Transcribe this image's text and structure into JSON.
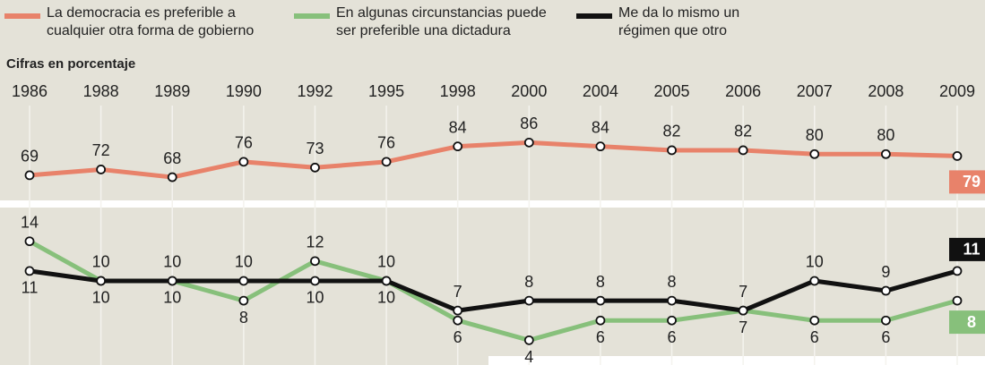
{
  "chart_data": {
    "type": "line",
    "subtitle": "Cifras en porcentaje",
    "categories": [
      "1986",
      "1988",
      "1989",
      "1990",
      "1992",
      "1995",
      "1998",
      "2000",
      "2004",
      "2005",
      "2006",
      "2007",
      "2008",
      "2009"
    ],
    "series": [
      {
        "name": "La democracia es preferible a cualquier otra forma de gobierno",
        "color": "#e8826a",
        "values": [
          69,
          72,
          68,
          76,
          73,
          76,
          84,
          86,
          84,
          82,
          82,
          80,
          80,
          79
        ]
      },
      {
        "name": "En algunas circunstancias puede ser preferible una dictadura",
        "color": "#87c07b",
        "axis": "y2",
        "values": [
          14,
          10,
          10,
          8,
          12,
          10,
          6,
          4,
          6,
          6,
          7,
          6,
          6,
          8
        ]
      },
      {
        "name": "Me da lo mismo un régimen que otro",
        "color": "#111111",
        "axis": "y2",
        "values": [
          11,
          10,
          10,
          10,
          10,
          10,
          7,
          8,
          8,
          8,
          7,
          10,
          9,
          11
        ]
      }
    ],
    "ylim": [
      55,
      95
    ],
    "y2lim": [
      1.5,
      17.5
    ]
  }
}
